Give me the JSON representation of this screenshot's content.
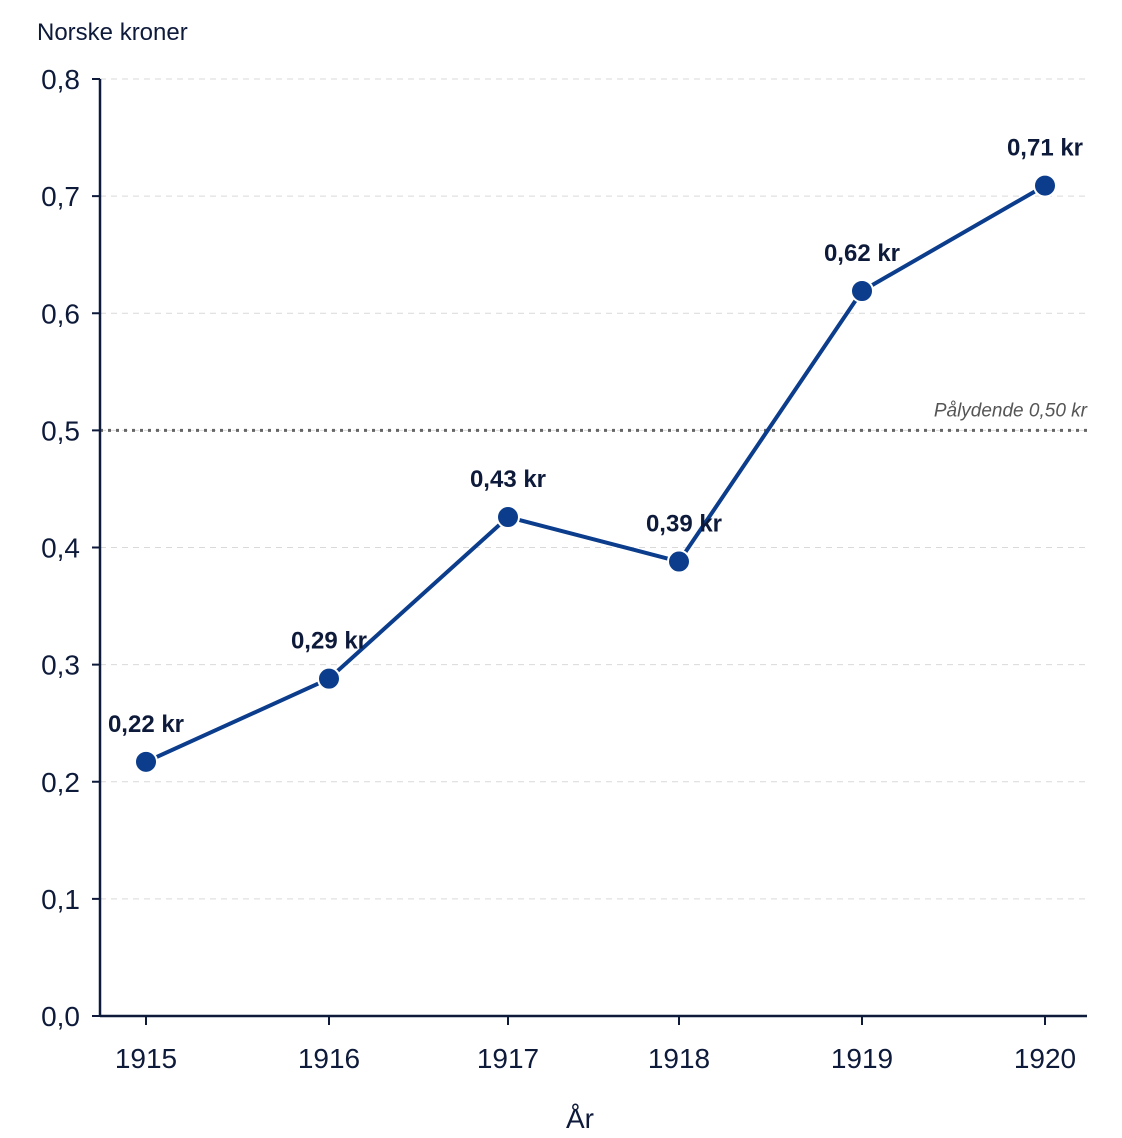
{
  "chart_data": {
    "type": "line",
    "ylabel": "Norske kroner",
    "xlabel": "År",
    "ylim": [
      0,
      0.8
    ],
    "yticks": [
      "0,0",
      "0,1",
      "0,2",
      "0,3",
      "0,4",
      "0,5",
      "0,6",
      "0,7",
      "0,8"
    ],
    "ytick_values": [
      0,
      0.1,
      0.2,
      0.3,
      0.4,
      0.5,
      0.6,
      0.7,
      0.8
    ],
    "categories": [
      "1915",
      "1916",
      "1917",
      "1918",
      "1919",
      "1920"
    ],
    "series": [
      {
        "values": [
          0.217,
          0.288,
          0.426,
          0.388,
          0.619,
          0.709
        ],
        "labels": [
          "0,22 kr",
          "0,29 kr",
          "0,43 kr",
          "0,39 kr",
          "0,62 kr",
          "0,71 kr"
        ],
        "color": "#0b3d8c"
      }
    ],
    "reference_line": {
      "value": 0.5,
      "label": "Pålydende 0,50 kr",
      "color": "#666666"
    },
    "grid": true
  }
}
